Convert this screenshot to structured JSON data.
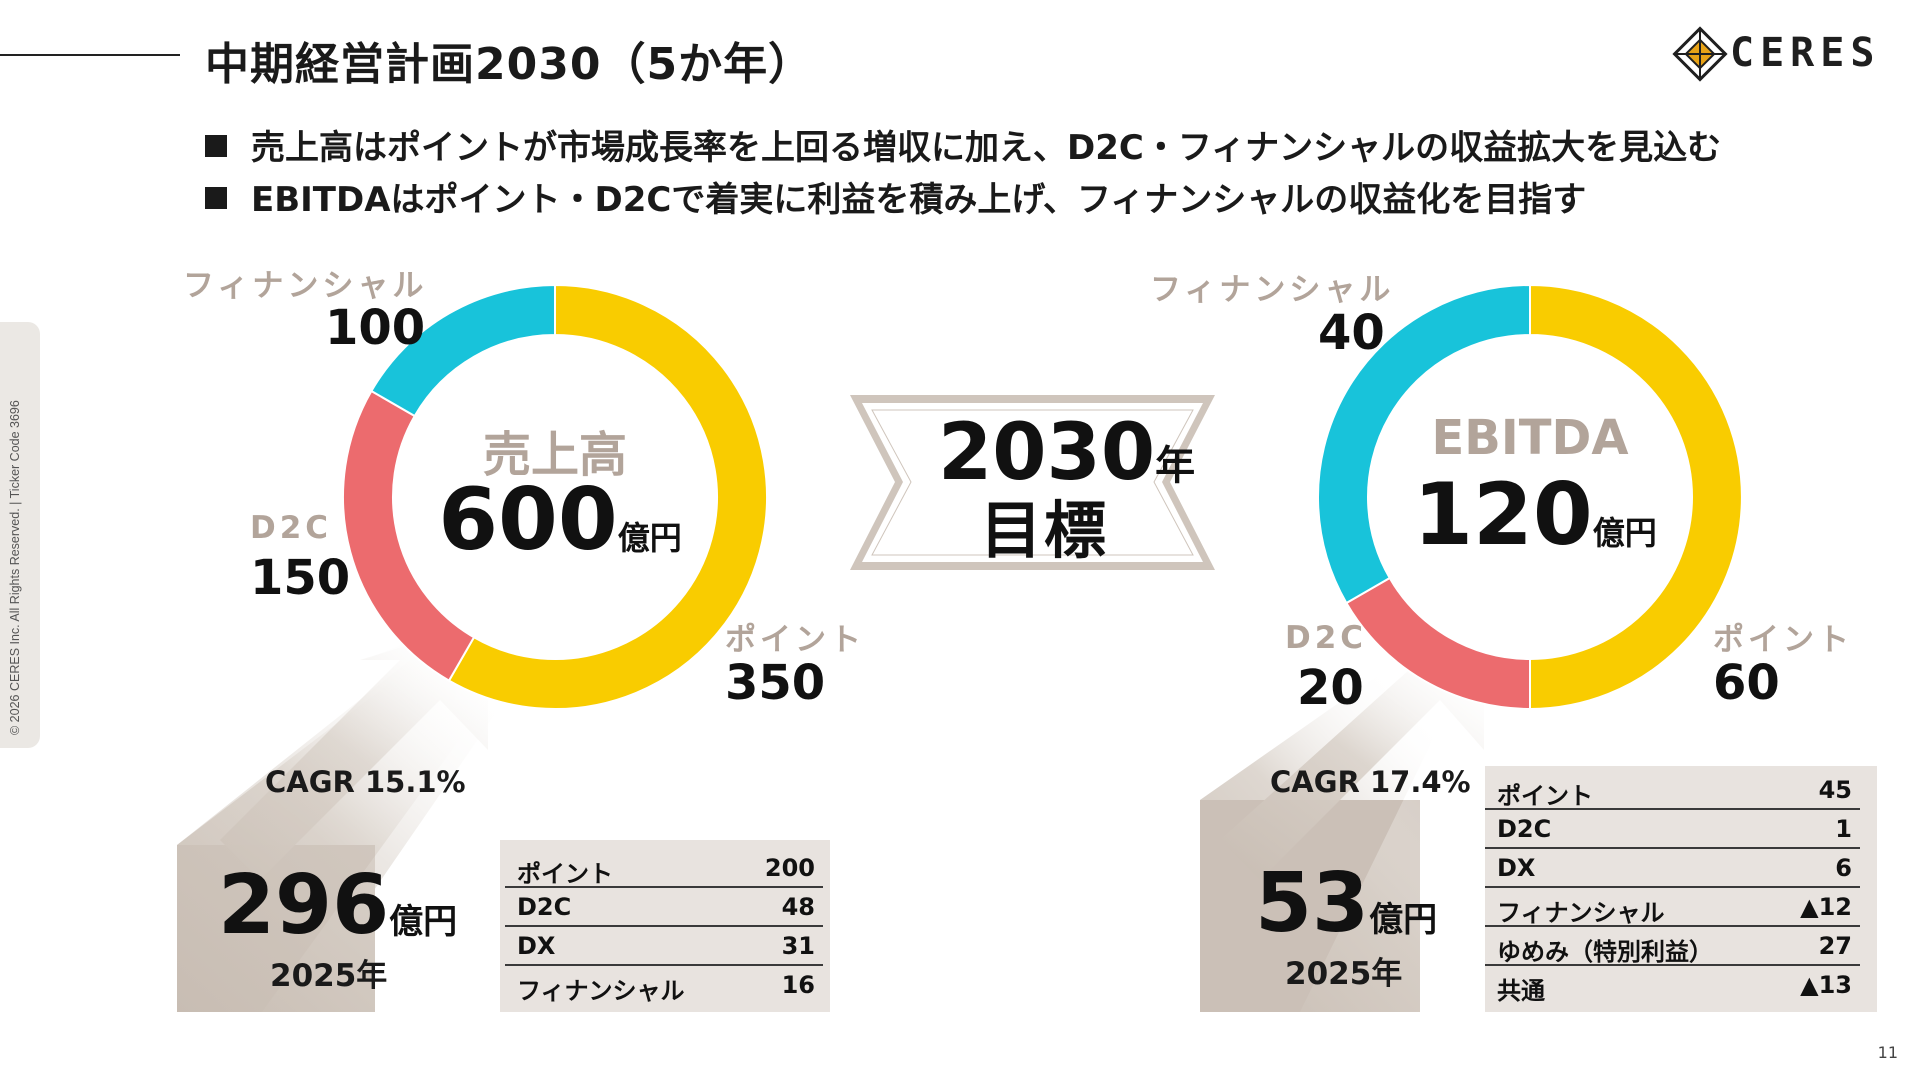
{
  "header": {
    "title": "中期経営計画2030（5か年）",
    "logo_text": "CERES"
  },
  "bullets": [
    "売上高はポイントが市場成長率を上回る増収に加え、D2C・フィナンシャルの収益拡大を見込む",
    "EBITDAはポイント・D2Cで着実に利益を積み上げ、フィナンシャルの収益化を目指す"
  ],
  "colors": {
    "point": "#f9cc00",
    "d2c": "#ec6b6e",
    "financial": "#18c3da",
    "label_gray": "#b2a49a",
    "arrow": "#c8bdb3",
    "table_bg": "#e8e3df"
  },
  "center_banner": {
    "year": "2030",
    "year_suffix": "年",
    "label": "目標"
  },
  "chart_data": [
    {
      "type": "pie",
      "title": "売上高",
      "total": "600",
      "unit": "億円",
      "categories": [
        "ポイント",
        "D2C",
        "フィナンシャル"
      ],
      "values": [
        350,
        150,
        100
      ],
      "colors": [
        "#f9cc00",
        "#ec6b6e",
        "#18c3da"
      ],
      "cagr": "CAGR 15.1%",
      "base": {
        "value": "296",
        "unit": "億円",
        "year": "2025年"
      },
      "breakdown": [
        {
          "label": "ポイント",
          "value": "200"
        },
        {
          "label": "D2C",
          "value": "48"
        },
        {
          "label": "DX",
          "value": "31"
        },
        {
          "label": "フィナンシャル",
          "value": "16"
        }
      ]
    },
    {
      "type": "pie",
      "title": "EBITDA",
      "total": "120",
      "unit": "億円",
      "categories": [
        "ポイント",
        "D2C",
        "フィナンシャル"
      ],
      "values": [
        60,
        20,
        40
      ],
      "colors": [
        "#f9cc00",
        "#ec6b6e",
        "#18c3da"
      ],
      "cagr": "CAGR 17.4%",
      "base": {
        "value": "53",
        "unit": "億円",
        "year": "2025年"
      },
      "breakdown": [
        {
          "label": "ポイント",
          "value": "45"
        },
        {
          "label": "D2C",
          "value": "1"
        },
        {
          "label": "DX",
          "value": "6"
        },
        {
          "label": "フィナンシャル",
          "value": "▲12"
        },
        {
          "label": "ゆめみ（特別利益）",
          "value": "27"
        },
        {
          "label": "共通",
          "value": "▲13"
        }
      ]
    }
  ],
  "footer": {
    "copyright": "© 2026 CERES Inc. All Rights Reserved. | Ticker Code 3696",
    "page_number": "11"
  }
}
